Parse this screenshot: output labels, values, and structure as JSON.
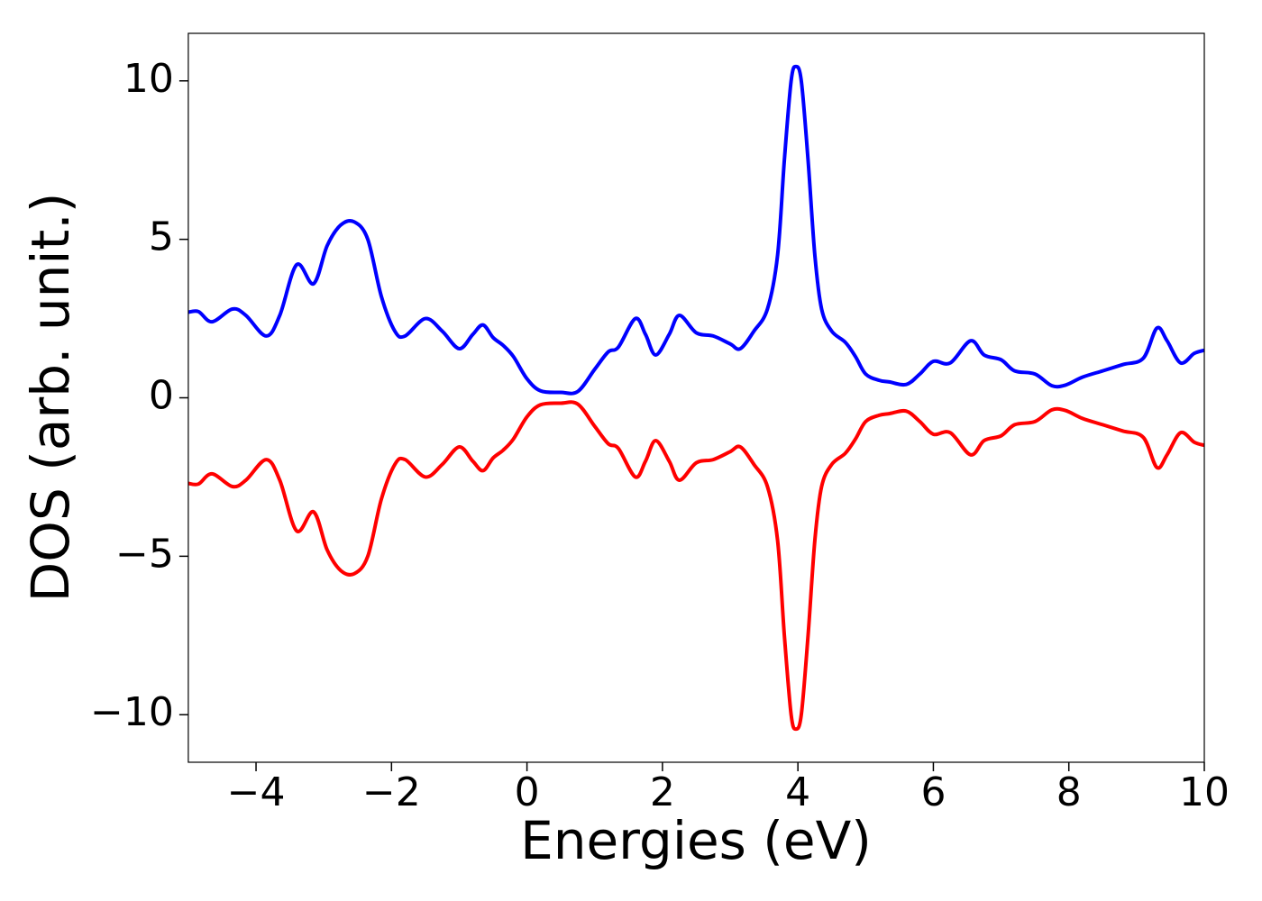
{
  "chart_data": {
    "type": "line",
    "xlabel": "Energies (eV)",
    "ylabel": "DOS (arb. unit.)",
    "x": [
      -5,
      -4.85,
      -4.65,
      -4.35,
      -4.15,
      -3.85,
      -3.65,
      -3.4,
      -3.15,
      -2.95,
      -2.75,
      -2.55,
      -2.35,
      -2.15,
      -1.95,
      -1.8,
      -1.5,
      -1.25,
      -1.0,
      -0.8,
      -0.65,
      -0.5,
      -0.35,
      -0.2,
      0,
      0.2,
      0.5,
      0.75,
      1.0,
      1.2,
      1.35,
      1.6,
      1.75,
      1.9,
      2.1,
      2.25,
      2.5,
      2.75,
      3.0,
      3.15,
      3.35,
      3.55,
      3.7,
      3.8,
      3.9,
      3.97,
      4.05,
      4.15,
      4.25,
      4.35,
      4.5,
      4.7,
      4.85,
      5.0,
      5.2,
      5.35,
      5.6,
      5.8,
      6.0,
      6.25,
      6.55,
      6.75,
      7.0,
      7.2,
      7.5,
      7.75,
      7.95,
      8.2,
      8.5,
      8.8,
      9.1,
      9.3,
      9.45,
      9.65,
      9.85,
      10.0
    ],
    "series": [
      {
        "color": "#0000ff",
        "values": [
          2.7,
          2.72,
          2.4,
          2.8,
          2.6,
          1.95,
          2.6,
          4.2,
          3.6,
          4.8,
          5.45,
          5.55,
          5.0,
          3.2,
          2.1,
          1.95,
          2.5,
          2.1,
          1.55,
          2.0,
          2.3,
          1.9,
          1.65,
          1.3,
          0.6,
          0.22,
          0.17,
          0.2,
          0.9,
          1.45,
          1.6,
          2.5,
          2.0,
          1.35,
          2.0,
          2.6,
          2.05,
          1.95,
          1.7,
          1.55,
          2.1,
          2.8,
          4.5,
          7.5,
          10.0,
          10.45,
          10.0,
          7.5,
          4.5,
          2.8,
          2.1,
          1.75,
          1.3,
          0.75,
          0.55,
          0.5,
          0.42,
          0.75,
          1.15,
          1.1,
          1.8,
          1.35,
          1.2,
          0.85,
          0.75,
          0.38,
          0.4,
          0.65,
          0.85,
          1.05,
          1.25,
          2.2,
          1.8,
          1.1,
          1.4,
          1.5
        ]
      },
      {
        "color": "#ff0000",
        "values": [
          -2.7,
          -2.72,
          -2.4,
          -2.8,
          -2.6,
          -1.95,
          -2.6,
          -4.2,
          -3.6,
          -4.8,
          -5.45,
          -5.55,
          -5.0,
          -3.2,
          -2.1,
          -1.95,
          -2.5,
          -2.1,
          -1.55,
          -2.0,
          -2.3,
          -1.9,
          -1.65,
          -1.3,
          -0.6,
          -0.22,
          -0.17,
          -0.2,
          -0.9,
          -1.45,
          -1.6,
          -2.5,
          -2.0,
          -1.35,
          -2.0,
          -2.6,
          -2.05,
          -1.95,
          -1.7,
          -1.55,
          -2.1,
          -2.8,
          -4.5,
          -7.5,
          -10.0,
          -10.45,
          -10.0,
          -7.5,
          -4.5,
          -2.8,
          -2.1,
          -1.75,
          -1.3,
          -0.75,
          -0.55,
          -0.5,
          -0.42,
          -0.75,
          -1.15,
          -1.1,
          -1.8,
          -1.35,
          -1.2,
          -0.85,
          -0.75,
          -0.38,
          -0.4,
          -0.65,
          -0.85,
          -1.05,
          -1.25,
          -2.2,
          -1.8,
          -1.1,
          -1.4,
          -1.5
        ]
      }
    ],
    "xlim": [
      -5,
      10
    ],
    "xticks": [
      {
        "value": -4,
        "label": "−4"
      },
      {
        "value": -2,
        "label": "−2"
      },
      0,
      2,
      4,
      6,
      8,
      10
    ],
    "ylim": [
      -11.5,
      11.5
    ],
    "yticks": [
      {
        "value": -10,
        "label": "−10"
      },
      {
        "value": -5,
        "label": "−5"
      },
      0,
      5,
      10
    ],
    "grid": false
  }
}
